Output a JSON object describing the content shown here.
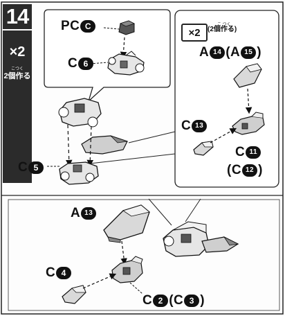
{
  "step": {
    "number": "14",
    "side_multiplier": "×2",
    "side_make_text": "2個作る",
    "side_make_ruby": "こつく"
  },
  "callout_top": {
    "label_pc": "PC",
    "label_pc_num": "C",
    "label_c6": "C",
    "label_c6_num": "6"
  },
  "callout_right": {
    "multiplier": "×2",
    "make_text": "(2個作る)",
    "make_ruby": "こ つく",
    "label_a": "A",
    "label_a_num1": "14",
    "label_paren_open": "(A",
    "label_a_num2": "15",
    "label_paren_close": ")",
    "label_c13": "C",
    "label_c13_num": "13",
    "label_c11": "C",
    "label_c11_num": "11",
    "label_c12_open": "(C",
    "label_c12_num": "12",
    "label_c12_close": ")"
  },
  "main_upper": {
    "label_c5": "C",
    "label_c5_num": "5"
  },
  "lower_panel": {
    "label_a13": "A",
    "label_a13_num": "13",
    "label_c4": "C",
    "label_c4_num": "4",
    "label_c2": "C",
    "label_c2_num": "2",
    "label_c3_open": "(C",
    "label_c3_num": "3",
    "label_c3_close": ")"
  },
  "colors": {
    "ink": "#111111",
    "panel_dark": "#2b2b2b",
    "part_gray": "#cfcfcf",
    "part_dark": "#555555"
  }
}
